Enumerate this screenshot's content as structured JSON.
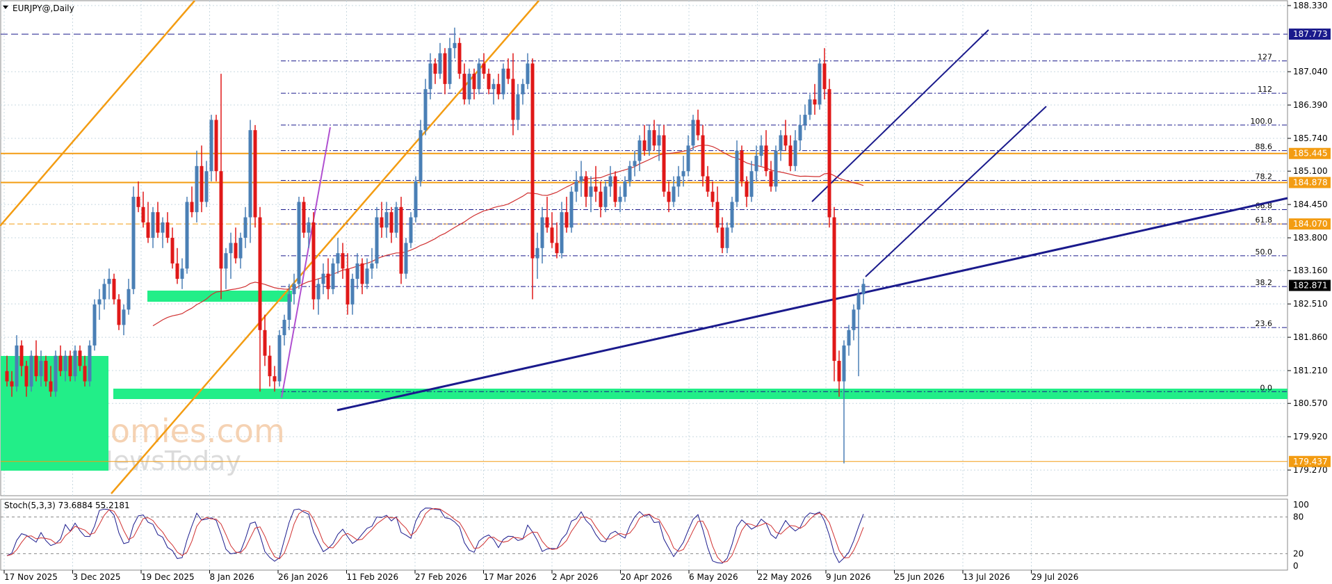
{
  "header": {
    "symbol": "EURJPY@,Daily"
  },
  "colors": {
    "bull": "#4a7fb5",
    "bear": "#e01818",
    "grid": "#c8d8e0",
    "orange": "#f39c12",
    "navy": "#1a1a8c",
    "purple": "#b050d0",
    "green": "#22ee88",
    "ma": "#d03030",
    "stoch_k": "#1a1a8c",
    "stoch_d": "#d03030"
  },
  "watermark": {
    "line1": "economies.com",
    "line2": "FxNewsToday"
  },
  "chart_data": {
    "type": "candlestick",
    "title": "EURJPY@,Daily",
    "ylim": [
      179.0,
      188.33
    ],
    "y_ticks": [
      "188.330",
      "187.040",
      "186.390",
      "185.740",
      "185.100",
      "184.450",
      "183.800",
      "183.160",
      "182.510",
      "181.860",
      "181.210",
      "180.570",
      "179.920",
      "179.270"
    ],
    "x_ticks": [
      "17 Nov 2025",
      "3 Dec 2025",
      "19 Dec 2025",
      "8 Jan 2026",
      "26 Jan 2026",
      "11 Feb 2026",
      "27 Feb 2026",
      "17 Mar 2026",
      "2 Apr 2026",
      "20 Apr 2026",
      "6 May 2026",
      "22 May 2026",
      "9 Jun 2026",
      "25 Jun 2026",
      "13 Jul 2026",
      "29 Jul 2026"
    ],
    "price_labels": [
      {
        "text": "187.773",
        "value": 187.773,
        "type": "navy"
      },
      {
        "text": "185.445",
        "value": 185.445,
        "type": "orange"
      },
      {
        "text": "184.878",
        "value": 184.878,
        "type": "orange"
      },
      {
        "text": "184.070",
        "value": 184.07,
        "type": "orange"
      },
      {
        "text": "182.871",
        "value": 182.871,
        "type": "dark"
      },
      {
        "text": "179.437",
        "value": 179.437,
        "type": "orange"
      }
    ],
    "fibonacci": [
      {
        "label": "127",
        "value": 187.25
      },
      {
        "label": "112",
        "value": 186.62
      },
      {
        "label": "100.0",
        "value": 186.0
      },
      {
        "label": "88.6",
        "value": 185.5
      },
      {
        "label": "78.2",
        "value": 184.92
      },
      {
        "label": "66.8",
        "value": 184.35
      },
      {
        "label": "61.8",
        "value": 184.07
      },
      {
        "label": "50.0",
        "value": 183.45
      },
      {
        "label": "38.2",
        "value": 182.85
      },
      {
        "label": "23.6",
        "value": 182.05
      },
      {
        "label": "0.0",
        "value": 180.8
      }
    ],
    "candles": [
      [
        181.2,
        181.5,
        180.9,
        181.0
      ],
      [
        181.0,
        181.2,
        180.7,
        180.9
      ],
      [
        180.9,
        181.9,
        180.8,
        181.7
      ],
      [
        181.7,
        181.8,
        181.1,
        181.3
      ],
      [
        181.3,
        181.4,
        180.7,
        180.9
      ],
      [
        180.9,
        181.6,
        180.8,
        181.5
      ],
      [
        181.5,
        181.8,
        181.0,
        181.1
      ],
      [
        181.1,
        181.6,
        180.9,
        181.4
      ],
      [
        181.4,
        181.5,
        180.9,
        181.0
      ],
      [
        181.0,
        181.3,
        180.7,
        180.8
      ],
      [
        180.8,
        181.6,
        180.7,
        181.5
      ],
      [
        181.5,
        181.7,
        181.1,
        181.2
      ],
      [
        181.2,
        181.6,
        181.0,
        181.5
      ],
      [
        181.5,
        181.6,
        181.0,
        181.1
      ],
      [
        181.1,
        181.7,
        181.0,
        181.6
      ],
      [
        181.6,
        181.7,
        181.2,
        181.3
      ],
      [
        181.3,
        181.5,
        180.9,
        181.0
      ],
      [
        181.0,
        181.8,
        180.9,
        181.7
      ],
      [
        181.7,
        182.6,
        181.6,
        182.5
      ],
      [
        182.5,
        182.8,
        182.2,
        182.6
      ],
      [
        182.6,
        183.0,
        182.4,
        182.9
      ],
      [
        182.9,
        183.2,
        182.6,
        183.0
      ],
      [
        183.0,
        183.1,
        182.5,
        182.6
      ],
      [
        182.6,
        182.7,
        182.0,
        182.1
      ],
      [
        182.1,
        182.5,
        181.9,
        182.4
      ],
      [
        182.4,
        183.0,
        182.3,
        182.8
      ],
      [
        182.8,
        184.8,
        182.7,
        184.6
      ],
      [
        184.6,
        184.9,
        184.3,
        184.4
      ],
      [
        184.4,
        184.7,
        184.0,
        184.1
      ],
      [
        184.1,
        184.5,
        183.7,
        183.8
      ],
      [
        183.8,
        184.4,
        183.6,
        184.3
      ],
      [
        184.3,
        184.5,
        183.8,
        183.9
      ],
      [
        183.9,
        184.2,
        183.6,
        184.1
      ],
      [
        184.1,
        184.3,
        183.7,
        183.8
      ],
      [
        183.8,
        184.0,
        183.2,
        183.3
      ],
      [
        183.3,
        183.6,
        182.9,
        183.0
      ],
      [
        183.0,
        183.4,
        182.8,
        183.2
      ],
      [
        183.2,
        184.6,
        183.1,
        184.5
      ],
      [
        184.5,
        184.8,
        184.2,
        184.3
      ],
      [
        184.3,
        185.5,
        184.1,
        185.2
      ],
      [
        185.2,
        185.6,
        184.3,
        184.5
      ],
      [
        184.5,
        185.3,
        184.4,
        185.1
      ],
      [
        185.1,
        186.2,
        184.9,
        186.1
      ],
      [
        186.1,
        186.2,
        184.9,
        185.1
      ],
      [
        185.1,
        187.0,
        182.6,
        183.2
      ],
      [
        183.2,
        183.6,
        182.8,
        183.5
      ],
      [
        183.5,
        183.9,
        183.0,
        183.7
      ],
      [
        183.7,
        184.0,
        183.3,
        183.4
      ],
      [
        183.4,
        183.9,
        183.2,
        183.8
      ],
      [
        183.8,
        184.4,
        183.6,
        184.2
      ],
      [
        184.2,
        186.1,
        183.7,
        185.9
      ],
      [
        185.9,
        186.0,
        184.0,
        184.2
      ],
      [
        184.2,
        184.4,
        180.8,
        182.0
      ],
      [
        182.0,
        182.3,
        181.3,
        181.5
      ],
      [
        181.5,
        181.7,
        180.9,
        181.1
      ],
      [
        181.1,
        181.3,
        180.8,
        181.0
      ],
      [
        181.0,
        182.0,
        180.9,
        181.9
      ],
      [
        181.9,
        182.3,
        181.7,
        182.2
      ],
      [
        182.2,
        182.9,
        182.0,
        182.7
      ],
      [
        182.7,
        183.1,
        182.5,
        182.9
      ],
      [
        182.9,
        184.6,
        182.8,
        184.5
      ],
      [
        184.5,
        184.6,
        183.8,
        183.9
      ],
      [
        183.9,
        184.2,
        183.6,
        184.1
      ],
      [
        184.1,
        184.3,
        182.4,
        182.6
      ],
      [
        182.6,
        183.0,
        182.3,
        182.9
      ],
      [
        182.9,
        183.3,
        182.7,
        183.1
      ],
      [
        183.1,
        183.4,
        182.6,
        182.8
      ],
      [
        182.8,
        183.4,
        182.7,
        183.3
      ],
      [
        183.3,
        183.8,
        183.1,
        183.5
      ],
      [
        183.5,
        183.7,
        183.0,
        183.2
      ],
      [
        183.2,
        183.5,
        182.3,
        182.5
      ],
      [
        182.5,
        183.1,
        182.3,
        183.0
      ],
      [
        183.0,
        183.5,
        182.8,
        183.3
      ],
      [
        183.3,
        183.4,
        182.7,
        182.9
      ],
      [
        182.9,
        183.4,
        182.8,
        183.2
      ],
      [
        183.2,
        183.6,
        183.0,
        183.3
      ],
      [
        183.3,
        184.4,
        183.2,
        184.2
      ],
      [
        184.2,
        184.5,
        183.8,
        184.0
      ],
      [
        184.0,
        184.5,
        183.8,
        184.3
      ],
      [
        184.3,
        184.4,
        183.7,
        183.9
      ],
      [
        183.9,
        184.5,
        183.8,
        184.4
      ],
      [
        184.4,
        184.6,
        182.9,
        183.1
      ],
      [
        183.1,
        183.8,
        183.0,
        183.7
      ],
      [
        183.7,
        184.3,
        183.6,
        184.2
      ],
      [
        184.2,
        185.0,
        184.1,
        184.9
      ],
      [
        184.9,
        186.1,
        184.8,
        185.9
      ],
      [
        185.9,
        186.9,
        185.8,
        186.7
      ],
      [
        186.7,
        187.4,
        186.5,
        187.2
      ],
      [
        187.2,
        187.3,
        186.8,
        187.0
      ],
      [
        187.0,
        187.6,
        186.9,
        187.4
      ],
      [
        187.4,
        187.5,
        186.6,
        186.8
      ],
      [
        186.8,
        187.7,
        186.7,
        187.5
      ],
      [
        187.5,
        187.9,
        187.3,
        187.6
      ],
      [
        187.6,
        187.7,
        186.9,
        187.0
      ],
      [
        187.0,
        187.2,
        186.4,
        186.5
      ],
      [
        186.5,
        187.1,
        186.4,
        187.0
      ],
      [
        187.0,
        187.1,
        186.5,
        186.7
      ],
      [
        186.7,
        187.3,
        186.6,
        187.2
      ],
      [
        187.2,
        187.4,
        186.9,
        187.0
      ],
      [
        187.0,
        187.1,
        186.6,
        186.7
      ],
      [
        186.7,
        186.9,
        186.4,
        186.8
      ],
      [
        186.8,
        187.0,
        186.5,
        186.6
      ],
      [
        186.6,
        187.2,
        186.5,
        187.1
      ],
      [
        187.1,
        187.3,
        186.8,
        186.9
      ],
      [
        186.9,
        187.4,
        185.8,
        186.1
      ],
      [
        186.1,
        186.8,
        185.9,
        186.6
      ],
      [
        186.6,
        186.9,
        186.4,
        186.8
      ],
      [
        186.8,
        187.4,
        186.7,
        187.2
      ],
      [
        187.2,
        187.3,
        182.6,
        183.4
      ],
      [
        183.4,
        183.9,
        183.0,
        183.6
      ],
      [
        183.6,
        184.4,
        183.3,
        184.2
      ],
      [
        184.2,
        184.6,
        183.9,
        184.0
      ],
      [
        184.0,
        184.3,
        183.6,
        183.7
      ],
      [
        183.7,
        184.1,
        183.4,
        183.5
      ],
      [
        183.5,
        184.5,
        183.4,
        184.3
      ],
      [
        184.3,
        184.6,
        183.9,
        184.0
      ],
      [
        184.0,
        184.8,
        183.9,
        184.7
      ],
      [
        184.7,
        185.1,
        184.5,
        184.9
      ],
      [
        184.9,
        185.3,
        184.6,
        185.0
      ],
      [
        185.0,
        185.1,
        184.4,
        184.6
      ],
      [
        184.6,
        185.0,
        184.3,
        184.8
      ],
      [
        184.8,
        185.2,
        184.5,
        184.7
      ],
      [
        184.7,
        184.9,
        184.2,
        184.4
      ],
      [
        184.4,
        184.9,
        184.3,
        184.8
      ],
      [
        184.8,
        185.2,
        184.6,
        185.0
      ],
      [
        185.0,
        185.1,
        184.4,
        184.5
      ],
      [
        184.5,
        184.8,
        184.3,
        184.6
      ],
      [
        184.6,
        185.0,
        184.5,
        184.9
      ],
      [
        184.9,
        185.3,
        184.8,
        185.2
      ],
      [
        185.2,
        185.5,
        185.0,
        185.3
      ],
      [
        185.3,
        185.8,
        185.1,
        185.7
      ],
      [
        185.7,
        186.0,
        185.4,
        185.5
      ],
      [
        185.5,
        186.0,
        185.4,
        185.9
      ],
      [
        185.9,
        186.1,
        185.5,
        185.6
      ],
      [
        185.6,
        186.0,
        185.3,
        185.8
      ],
      [
        185.8,
        186.0,
        184.6,
        184.7
      ],
      [
        184.7,
        184.9,
        184.3,
        184.5
      ],
      [
        184.5,
        185.0,
        184.4,
        184.8
      ],
      [
        184.8,
        185.2,
        184.6,
        185.0
      ],
      [
        185.0,
        185.4,
        184.8,
        185.1
      ],
      [
        185.1,
        185.8,
        185.0,
        185.6
      ],
      [
        185.6,
        186.2,
        185.5,
        186.1
      ],
      [
        186.1,
        186.3,
        185.7,
        185.8
      ],
      [
        185.8,
        186.0,
        184.8,
        185.0
      ],
      [
        185.0,
        185.2,
        184.6,
        184.7
      ],
      [
        184.7,
        184.9,
        184.4,
        184.5
      ],
      [
        184.5,
        184.8,
        183.9,
        184.0
      ],
      [
        184.0,
        184.2,
        183.5,
        183.6
      ],
      [
        183.6,
        184.1,
        183.5,
        184.0
      ],
      [
        184.0,
        184.6,
        183.9,
        184.5
      ],
      [
        184.5,
        185.7,
        184.4,
        185.5
      ],
      [
        185.5,
        185.6,
        184.8,
        184.9
      ],
      [
        184.9,
        185.0,
        184.4,
        184.6
      ],
      [
        184.6,
        185.3,
        184.5,
        185.1
      ],
      [
        185.1,
        185.6,
        184.9,
        185.4
      ],
      [
        185.4,
        185.8,
        185.2,
        185.6
      ],
      [
        185.6,
        185.9,
        185.0,
        185.1
      ],
      [
        185.1,
        185.3,
        184.7,
        184.8
      ],
      [
        184.8,
        185.6,
        184.7,
        185.5
      ],
      [
        185.5,
        185.9,
        185.3,
        185.8
      ],
      [
        185.8,
        186.1,
        185.5,
        185.6
      ],
      [
        185.6,
        185.8,
        185.1,
        185.2
      ],
      [
        185.2,
        185.9,
        185.1,
        185.7
      ],
      [
        185.7,
        186.2,
        185.5,
        186.0
      ],
      [
        186.0,
        186.4,
        185.9,
        186.2
      ],
      [
        186.2,
        186.6,
        186.1,
        186.5
      ],
      [
        186.5,
        186.8,
        186.2,
        186.4
      ],
      [
        186.4,
        187.3,
        186.3,
        187.2
      ],
      [
        187.2,
        187.5,
        186.5,
        186.7
      ],
      [
        186.7,
        186.9,
        184.0,
        184.2
      ],
      [
        184.2,
        184.4,
        181.0,
        181.4
      ],
      [
        181.4,
        181.6,
        180.7,
        181.0
      ],
      [
        181.0,
        181.8,
        179.4,
        181.7
      ],
      [
        181.7,
        182.1,
        181.5,
        182.0
      ],
      [
        182.0,
        182.5,
        181.8,
        182.4
      ],
      [
        182.4,
        182.8,
        181.1,
        182.7
      ],
      [
        182.7,
        183.0,
        182.5,
        182.9
      ]
    ],
    "stochastic": {
      "label": "Stoch(5,3,3) 73.6884 55.2181",
      "k": 73.6884,
      "d": 55.2181,
      "levels": [
        80,
        20
      ],
      "scale": [
        "100",
        "80",
        "20",
        "0"
      ]
    }
  }
}
